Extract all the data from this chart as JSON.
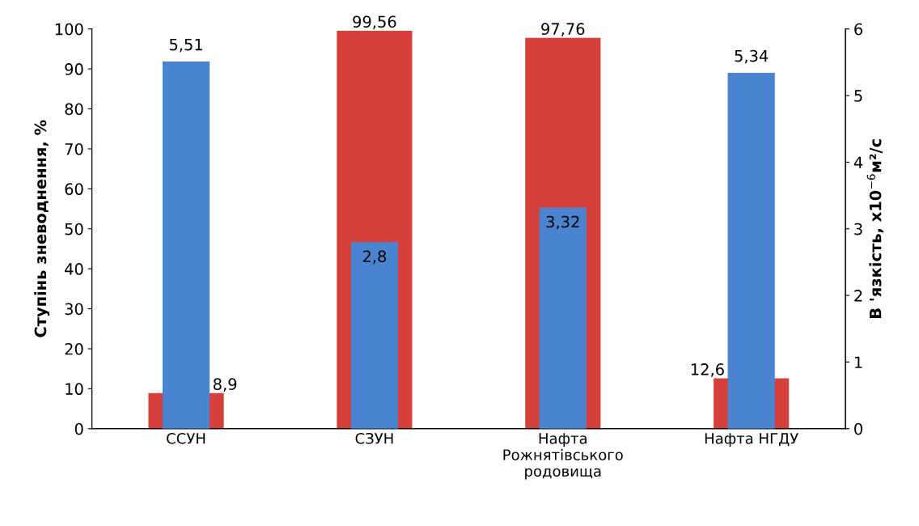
{
  "chart_data": {
    "type": "bar",
    "categories": [
      "ССУН",
      "СЗУН",
      "Нафта\nРожнятівського\nродовища",
      "Нафта НГДУ"
    ],
    "series": [
      {
        "name": null,
        "color": "#d6403a",
        "values": [
          8.9,
          99.56,
          97.76,
          12.6
        ],
        "value_labels": [
          "8,9",
          "99,56",
          "97,76",
          "12,6"
        ]
      },
      {
        "name": null,
        "color": "#4a84d0",
        "values": [
          5.51,
          2.8,
          3.32,
          5.34
        ],
        "axis": "y2",
        "value_labels": [
          "5,51",
          "2,8",
          "3,32",
          "5,34"
        ]
      }
    ],
    "ylabel": "Ступінь зневоднення, %",
    "y2label": "В 'язкість, х10$^{−6}$м²/с",
    "ylim": [
      0,
      100
    ],
    "yticks": [
      0,
      10,
      20,
      30,
      40,
      50,
      60,
      70,
      80,
      90,
      100
    ],
    "y2lim": [
      0,
      6
    ],
    "y2ticks": [
      0,
      1,
      2,
      3,
      4,
      5,
      6
    ],
    "grid": false,
    "legend": false
  }
}
